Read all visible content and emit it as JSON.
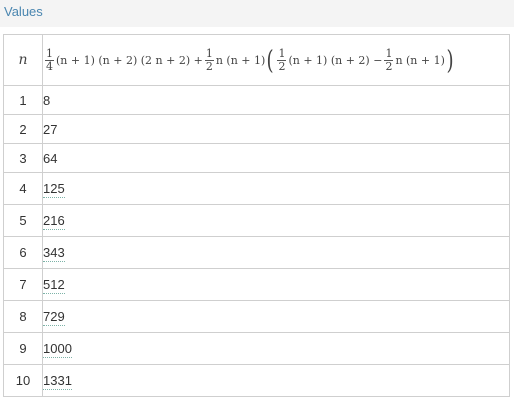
{
  "panel": {
    "title": "Values"
  },
  "table": {
    "header_n": "n",
    "formula": {
      "frac1_num": "1",
      "frac1_den": "4",
      "part1": "(n + 1) (n + 2) (2 n + 2) +",
      "frac2_num": "1",
      "frac2_den": "2",
      "part2": "n (n + 1)",
      "frac3_num": "1",
      "frac3_den": "2",
      "part3": "(n + 1) (n + 2) −",
      "frac4_num": "1",
      "frac4_den": "2",
      "part4": "n (n + 1)"
    },
    "rows": [
      {
        "n": "1",
        "value": "8"
      },
      {
        "n": "2",
        "value": "27"
      },
      {
        "n": "3",
        "value": "64"
      },
      {
        "n": "4",
        "value": "125"
      },
      {
        "n": "5",
        "value": "216"
      },
      {
        "n": "6",
        "value": "343"
      },
      {
        "n": "7",
        "value": "512"
      },
      {
        "n": "8",
        "value": "729"
      },
      {
        "n": "9",
        "value": "1000"
      },
      {
        "n": "10",
        "value": "1331"
      }
    ]
  }
}
